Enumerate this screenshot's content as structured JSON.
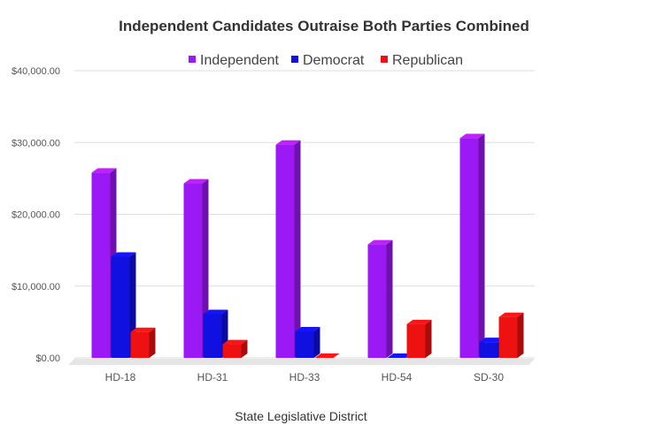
{
  "chart_data": {
    "type": "bar",
    "title": "Independent Candidates Outraise Both Parties Combined",
    "xlabel": "State Legislative District",
    "ylabel": "",
    "categories": [
      "HD-18",
      "HD-31",
      "HD-33",
      "HD-54",
      "SD-30"
    ],
    "series": [
      {
        "name": "Independent",
        "color": "#9b19f5",
        "values": [
          25800,
          24300,
          29700,
          15800,
          30600
        ]
      },
      {
        "name": "Democrat",
        "color": "#1010e0",
        "values": [
          14100,
          6100,
          3700,
          0,
          2200
        ]
      },
      {
        "name": "Republican",
        "color": "#ee1111",
        "values": [
          3600,
          1900,
          0,
          4700,
          5700
        ]
      }
    ],
    "ylim": [
      0,
      40000
    ],
    "yticks": [
      0,
      10000,
      20000,
      30000,
      40000
    ],
    "ytick_labels": [
      "$0.00",
      "$10,000.00",
      "$20,000.00",
      "$30,000.00",
      "$40,000.00"
    ],
    "legend_position": "top",
    "grid": true,
    "style": "3d-bar"
  }
}
